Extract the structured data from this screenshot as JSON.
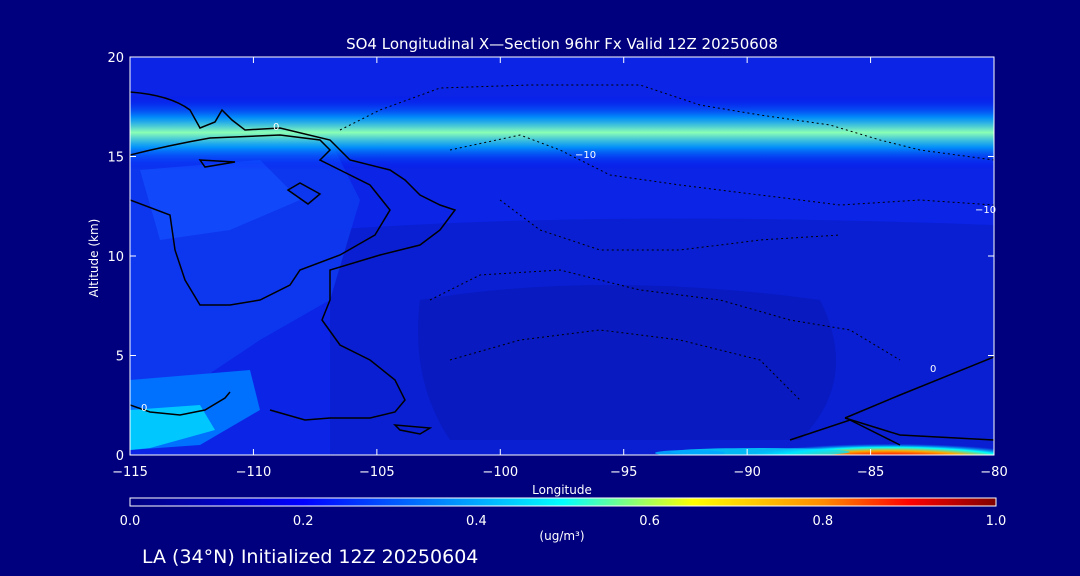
{
  "colors": {
    "background": "#00007f",
    "text": "#ffffff",
    "contour": "#000000",
    "colormap": [
      "#00007f",
      "#0000ff",
      "#00a8ff",
      "#00ffff",
      "#ffff00",
      "#ff8c00",
      "#ff0000",
      "#7f0000"
    ]
  },
  "chart_data": {
    "type": "heatmap",
    "title": "SO4 Longitudinal X—Section 96hr  Fx Valid 12Z 20250608",
    "subtitle": "LA (34°N) Initialized 12Z 20250604",
    "xlabel": "Longitude",
    "ylabel": "Altitude (km)",
    "xlim": [
      -115,
      -80
    ],
    "ylim": [
      0,
      20
    ],
    "x_ticks": [
      -115,
      -110,
      -105,
      -100,
      -95,
      -90,
      -85,
      -80
    ],
    "x_tick_labels": [
      "−115",
      "−110",
      "−105",
      "−100",
      "−95",
      "−90",
      "−85",
      "−80"
    ],
    "y_ticks": [
      0,
      5,
      10,
      15,
      20
    ],
    "y_tick_labels": [
      "0",
      "5",
      "10",
      "15",
      "20"
    ],
    "colorbar": {
      "label": "(ug/m³)",
      "range": [
        0.0,
        1.0
      ],
      "ticks": [
        0.0,
        0.2,
        0.4,
        0.6,
        0.8,
        1.0
      ],
      "tick_labels": [
        "0.0",
        "0.2",
        "0.4",
        "0.6",
        "0.8",
        "1.0"
      ]
    },
    "contour_labels": [
      {
        "text": "0",
        "lon": -109.5,
        "alt": 16.5
      },
      {
        "text": "−10",
        "lon": -95.5,
        "alt": 15.1
      },
      {
        "text": "0",
        "lon": -114,
        "alt": 2.4
      },
      {
        "text": "0",
        "lon": -82.5,
        "alt": 4.3
      },
      {
        "text": "−10",
        "lon": -80.5,
        "alt": 12.4
      }
    ],
    "features": [
      {
        "name": "upper-layer",
        "lon": [
          -115,
          -80
        ],
        "alt_center": 16.2,
        "max_value": 0.35
      },
      {
        "name": "surface-plume",
        "lon": [
          -93,
          -80
        ],
        "alt_center": 0.3,
        "max_value": 1.0
      }
    ]
  }
}
